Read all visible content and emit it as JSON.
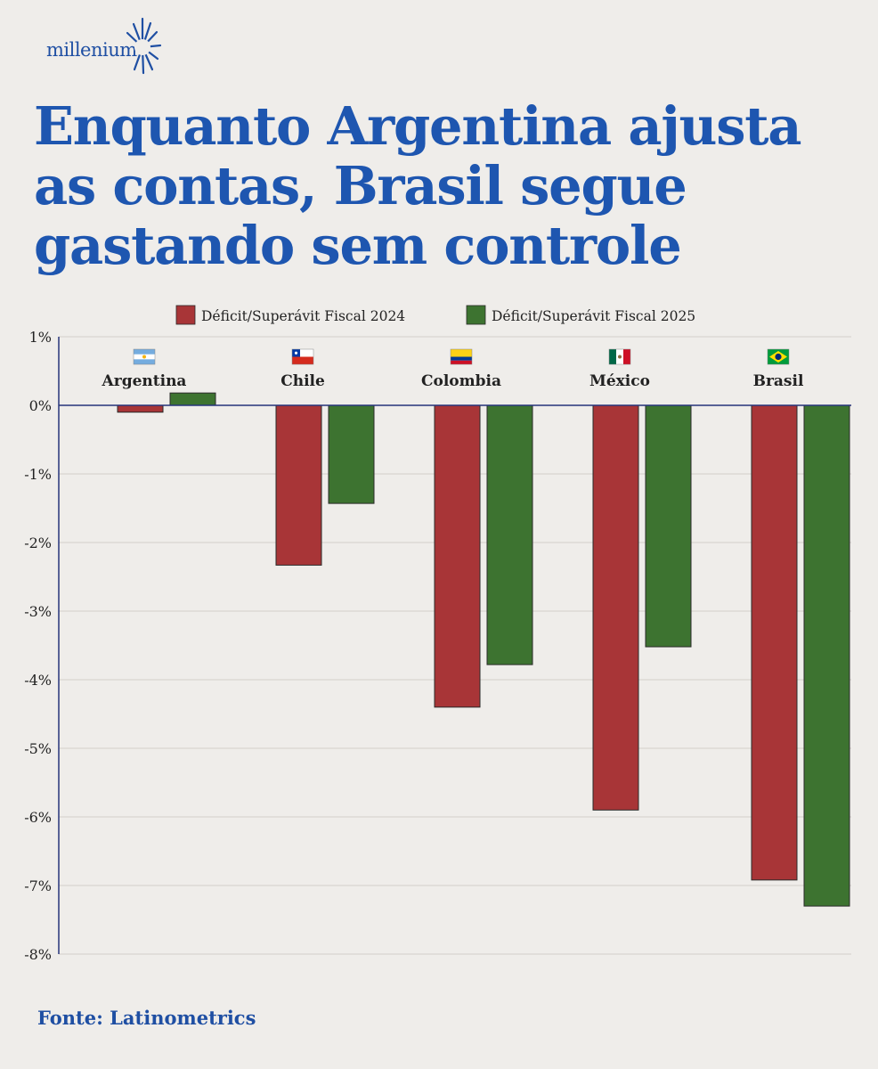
{
  "logo": {
    "text": "millenium"
  },
  "title_lines": [
    "Enquanto Argentina ajusta",
    "as contas, Brasil segue",
    "gastando sem controle"
  ],
  "source": "Fonte: Latinometrics",
  "colors": {
    "series_2024": "#a83537",
    "series_2025": "#3d7330",
    "title": "#1e56b0",
    "axis": "#26347a"
  },
  "chart_data": {
    "type": "bar",
    "categories": [
      "Argentina",
      "Chile",
      "Colombia",
      "México",
      "Brasil"
    ],
    "flags": [
      "flag-argentina-icon",
      "flag-chile-icon",
      "flag-colombia-icon",
      "flag-mexico-icon",
      "flag-brasil-icon"
    ],
    "series": [
      {
        "name": "Déficit/Superávit Fiscal 2024",
        "values": [
          -0.1,
          -2.33,
          -4.4,
          -5.9,
          -6.92
        ],
        "color": "#a83537"
      },
      {
        "name": "Déficit/Superávit Fiscal 2025",
        "values": [
          0.18,
          -1.43,
          -3.78,
          -3.52,
          -7.3
        ],
        "color": "#3d7330"
      }
    ],
    "ylim": [
      -8,
      1
    ],
    "yticks": [
      1,
      0,
      -1,
      -2,
      -3,
      -4,
      -5,
      -6,
      -7,
      -8
    ],
    "ytick_labels": [
      "1%",
      "0%",
      "-1%",
      "-2%",
      "-3%",
      "-4%",
      "-5%",
      "-6%",
      "-7%",
      "-8%"
    ],
    "grid": true,
    "legend_position": "top-center",
    "title": "",
    "xlabel": "",
    "ylabel": ""
  }
}
